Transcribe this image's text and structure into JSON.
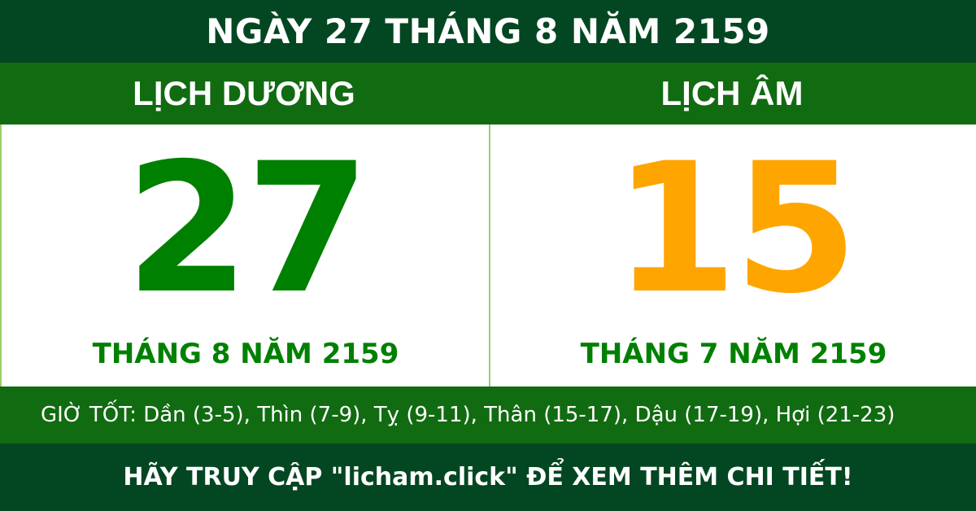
{
  "header": {
    "title": "NGÀY 27 THÁNG 8 NĂM 2159"
  },
  "solar": {
    "heading": "LỊCH DƯƠNG",
    "day": "27",
    "month_year": "THÁNG 8 NĂM 2159",
    "color": "#008000"
  },
  "lunar": {
    "heading": "LỊCH ÂM",
    "day": "15",
    "month_year": "THÁNG 7 NĂM 2159",
    "color": "#ffa500"
  },
  "good_hours": "GIỜ TỐT: Dần (3-5), Thìn (7-9), Tỵ (9-11), Thân (15-17), Dậu (17-19), Hợi (21-23)",
  "footer": {
    "text": "HÃY TRUY CẬP \"licham.click\" ĐỂ XEM THÊM CHI TIẾT!"
  },
  "colors": {
    "dark_green": "#034722",
    "green": "#116b11"
  }
}
